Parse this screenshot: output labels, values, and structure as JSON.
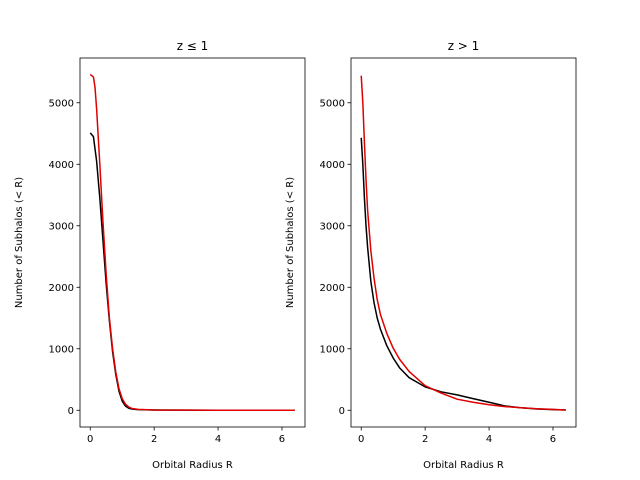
{
  "chart_data": [
    {
      "type": "line",
      "title": "z ≤ 1",
      "xlabel": "Orbital Radius R",
      "ylabel": "Number of Subhalos (< R)",
      "xlim": [
        -0.32,
        6.72
      ],
      "ylim": [
        -272,
        5728
      ],
      "xticks": [
        0,
        2,
        4,
        6
      ],
      "yticks": [
        0,
        1000,
        2000,
        3000,
        4000,
        5000
      ],
      "grid": false,
      "series": [
        {
          "color": "#000000",
          "x": [
            0.0,
            0.1,
            0.2,
            0.3,
            0.4,
            0.5,
            0.6,
            0.7,
            0.8,
            0.9,
            1.0,
            1.1,
            1.2,
            1.3,
            1.5,
            2.0,
            3.0,
            4.0,
            5.0,
            6.0,
            6.4
          ],
          "y": [
            4510,
            4450,
            4050,
            3450,
            2750,
            2050,
            1450,
            950,
            580,
            310,
            150,
            70,
            35,
            20,
            10,
            5,
            2,
            1,
            0,
            0,
            0
          ]
        },
        {
          "color": "#e00000",
          "x": [
            0.0,
            0.1,
            0.15,
            0.2,
            0.3,
            0.4,
            0.5,
            0.6,
            0.7,
            0.8,
            0.9,
            1.0,
            1.1,
            1.2,
            1.3,
            1.5,
            2.0,
            3.0,
            4.0,
            5.0,
            6.0,
            6.4
          ],
          "y": [
            5460,
            5420,
            5250,
            4900,
            4000,
            3050,
            2200,
            1500,
            1000,
            620,
            350,
            190,
            100,
            55,
            30,
            15,
            5,
            2,
            1,
            0,
            0,
            0
          ]
        }
      ]
    },
    {
      "type": "line",
      "title": "z > 1",
      "xlabel": "Orbital Radius R",
      "ylabel": "Number of Subhalos (< R)",
      "xlim": [
        -0.32,
        6.72
      ],
      "ylim": [
        -272,
        5728
      ],
      "xticks": [
        0,
        2,
        4,
        6
      ],
      "yticks": [
        0,
        1000,
        2000,
        3000,
        4000,
        5000
      ],
      "grid": false,
      "series": [
        {
          "color": "#000000",
          "x": [
            0.0,
            0.05,
            0.1,
            0.15,
            0.2,
            0.3,
            0.4,
            0.5,
            0.6,
            0.8,
            1.0,
            1.2,
            1.5,
            2.0,
            2.5,
            3.0,
            3.5,
            4.0,
            4.5,
            5.0,
            5.5,
            6.0,
            6.4
          ],
          "y": [
            4430,
            4000,
            3450,
            3000,
            2650,
            2100,
            1750,
            1500,
            1320,
            1050,
            850,
            690,
            530,
            380,
            300,
            250,
            190,
            130,
            70,
            40,
            20,
            10,
            5
          ]
        },
        {
          "color": "#e00000",
          "x": [
            0.0,
            0.05,
            0.1,
            0.15,
            0.2,
            0.3,
            0.4,
            0.5,
            0.6,
            0.8,
            1.0,
            1.2,
            1.5,
            2.0,
            2.5,
            3.0,
            3.5,
            4.0,
            4.5,
            5.0,
            5.5,
            6.0,
            6.4
          ],
          "y": [
            5440,
            5000,
            4350,
            3750,
            3250,
            2600,
            2150,
            1800,
            1560,
            1250,
            1010,
            830,
            630,
            400,
            280,
            180,
            130,
            90,
            60,
            40,
            25,
            15,
            5
          ]
        }
      ]
    }
  ]
}
